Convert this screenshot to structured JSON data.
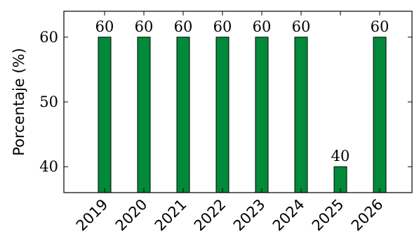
{
  "chart_data": {
    "type": "bar",
    "categories": [
      "2019",
      "2020",
      "2021",
      "2022",
      "2023",
      "2024",
      "2025",
      "2026"
    ],
    "values": [
      60,
      60,
      60,
      60,
      60,
      60,
      40,
      60
    ],
    "data_labels": [
      "60",
      "60",
      "60",
      "60",
      "60",
      "60",
      "40",
      "60"
    ],
    "ylabel": "Porcentaje (%)",
    "ylim": [
      36,
      64
    ],
    "yticks": [
      40,
      50,
      60
    ],
    "ytick_labels": [
      "40",
      "50",
      "60"
    ],
    "grid": false,
    "bar_color": "#008a3a",
    "bar_edge_color": "#000000"
  }
}
